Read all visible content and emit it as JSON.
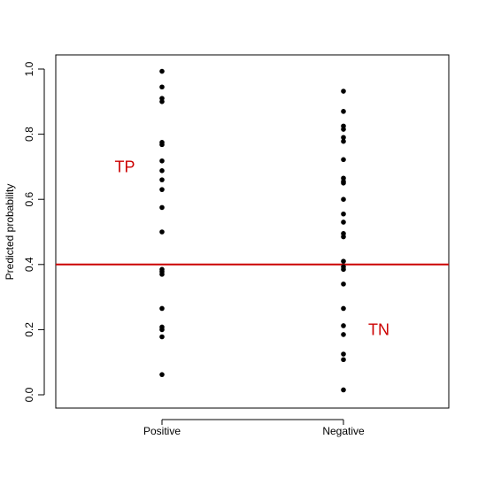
{
  "chart_data": {
    "type": "scatter",
    "title": "",
    "xlabel": "",
    "ylabel": "Predicted probability",
    "ylim": [
      0.0,
      1.0
    ],
    "yticks": [
      "0.0",
      "0.2",
      "0.4",
      "0.6",
      "0.8",
      "1.0"
    ],
    "categories": [
      "Positive",
      "Negative"
    ],
    "grid": false,
    "series": [
      {
        "category": "Positive",
        "values": [
          0.993,
          0.945,
          0.91,
          0.9,
          0.775,
          0.768,
          0.718,
          0.688,
          0.66,
          0.63,
          0.575,
          0.5,
          0.385,
          0.378,
          0.37,
          0.265,
          0.208,
          0.2,
          0.178,
          0.062
        ]
      },
      {
        "category": "Negative",
        "values": [
          0.932,
          0.87,
          0.825,
          0.815,
          0.79,
          0.778,
          0.722,
          0.665,
          0.655,
          0.65,
          0.6,
          0.555,
          0.53,
          0.495,
          0.485,
          0.41,
          0.393,
          0.385,
          0.34,
          0.265,
          0.212,
          0.185,
          0.125,
          0.108,
          0.015
        ]
      }
    ],
    "threshold": {
      "value": 0.4,
      "color": "#cc0000"
    },
    "annotations": [
      {
        "text": "TP",
        "x": "Positive",
        "y": 0.7
      },
      {
        "text": "TN",
        "x": "Negative",
        "y": 0.2
      }
    ],
    "colors": {
      "points": "#000000",
      "threshold": "#cc0000",
      "annotation": "#cc0000"
    }
  }
}
